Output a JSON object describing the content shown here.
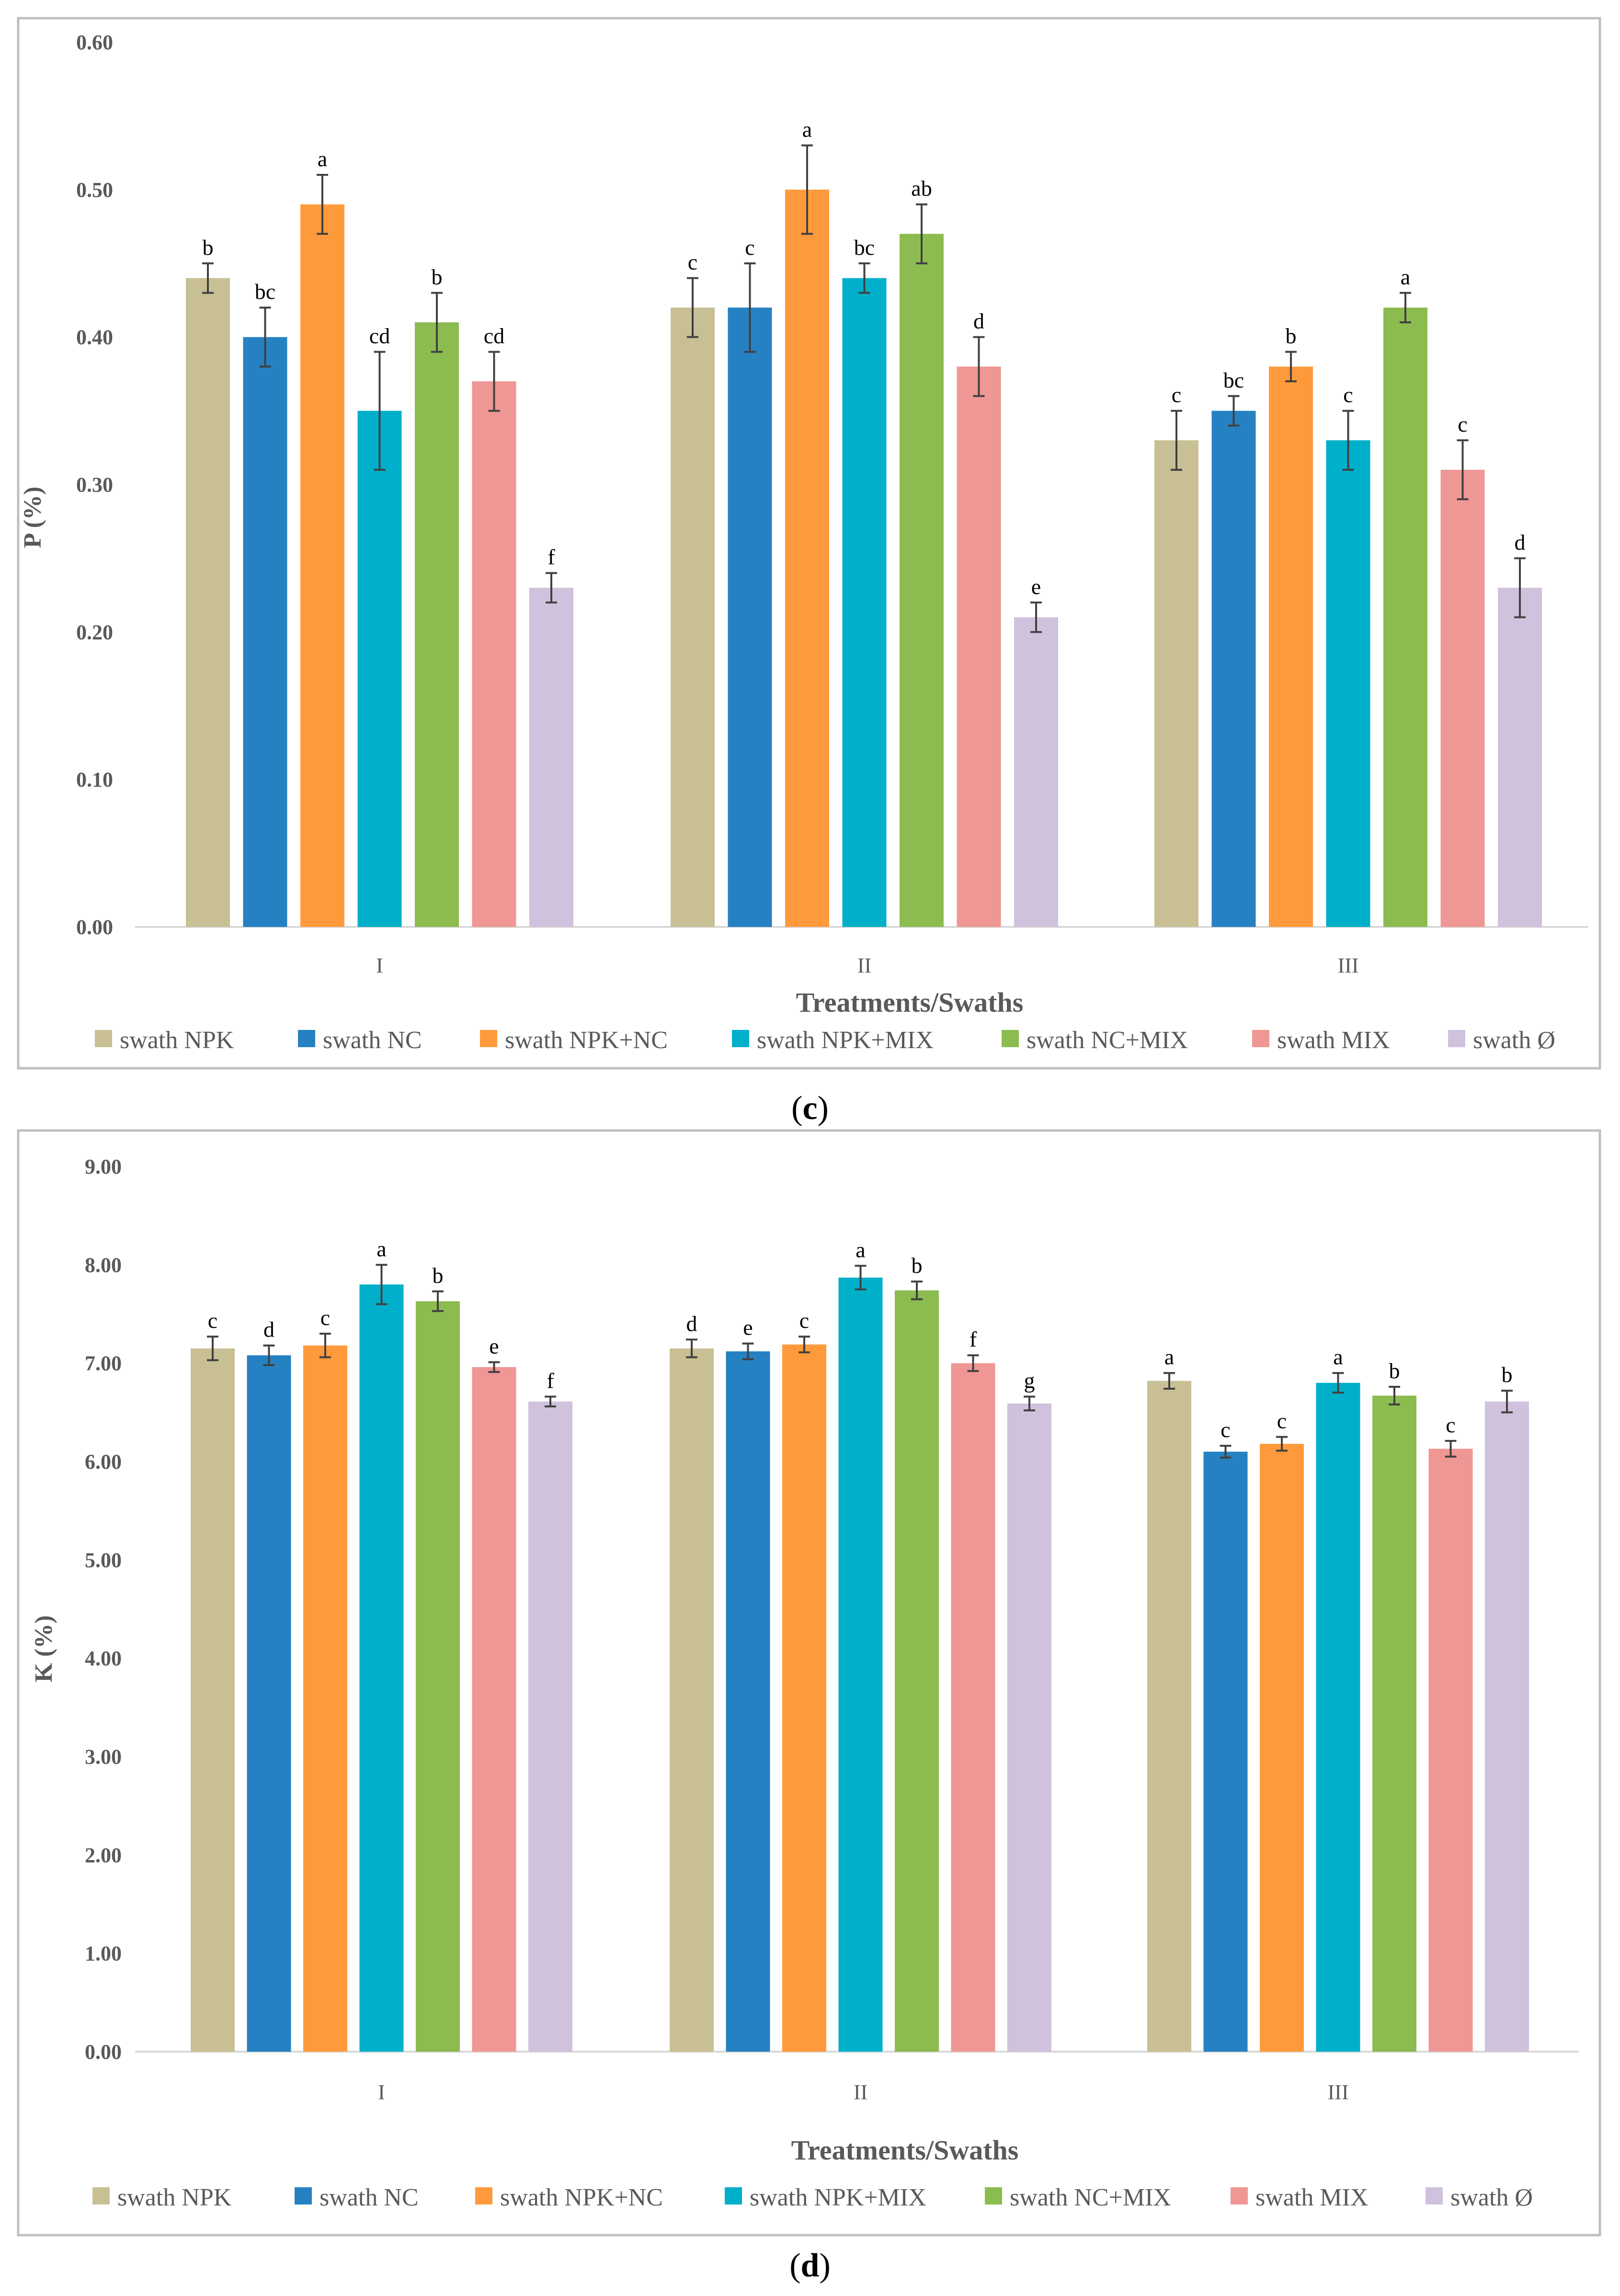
{
  "series_colors": [
    "#c8bf94",
    "#2681c2",
    "#ff9a3c",
    "#00afca",
    "#8cbb50",
    "#ef9794",
    "#d0c1dc"
  ],
  "chart_data": [
    {
      "type": "bar",
      "caption": "(c)",
      "caption_letter": "c",
      "xlabel": "Treatments/Swaths",
      "ylabel": "P (%)",
      "ylim": [
        0,
        0.6
      ],
      "yticks": [
        "0.00",
        "0.10",
        "0.20",
        "0.30",
        "0.40",
        "0.50",
        "0.60"
      ],
      "ytick_values": [
        0,
        0.1,
        0.2,
        0.3,
        0.4,
        0.5,
        0.6
      ],
      "categories": [
        "I",
        "II",
        "III"
      ],
      "legend_position": "bottom",
      "series": [
        {
          "name": "swath NPK",
          "values": [
            0.44,
            0.42,
            0.33
          ],
          "errors": [
            0.01,
            0.02,
            0.02
          ],
          "letters": [
            "b",
            "c",
            "c"
          ]
        },
        {
          "name": "swath NC",
          "values": [
            0.4,
            0.42,
            0.35
          ],
          "errors": [
            0.02,
            0.03,
            0.01
          ],
          "letters": [
            "bc",
            "c",
            "bc"
          ]
        },
        {
          "name": "swath NPK+NC",
          "values": [
            0.49,
            0.5,
            0.38
          ],
          "errors": [
            0.02,
            0.03,
            0.01
          ],
          "letters": [
            "a",
            "a",
            "b"
          ]
        },
        {
          "name": "swath NPK+MIX",
          "values": [
            0.35,
            0.44,
            0.33
          ],
          "errors": [
            0.04,
            0.01,
            0.02
          ],
          "letters": [
            "cd",
            "bc",
            "c"
          ]
        },
        {
          "name": "swath NC+MIX",
          "values": [
            0.41,
            0.47,
            0.42
          ],
          "errors": [
            0.02,
            0.02,
            0.01
          ],
          "letters": [
            "b",
            "ab",
            "a"
          ]
        },
        {
          "name": "swath MIX",
          "values": [
            0.37,
            0.38,
            0.31
          ],
          "errors": [
            0.02,
            0.02,
            0.02
          ],
          "letters": [
            "cd",
            "d",
            "c"
          ]
        },
        {
          "name": "swath Ø",
          "values": [
            0.23,
            0.21,
            0.23
          ],
          "errors": [
            0.01,
            0.01,
            0.02
          ],
          "letters": [
            "f",
            "e",
            "d"
          ]
        }
      ]
    },
    {
      "type": "bar",
      "caption": "(d)",
      "caption_letter": "d",
      "xlabel": "Treatments/Swaths",
      "ylabel": "K (%)",
      "ylim": [
        0,
        9
      ],
      "yticks": [
        "0.00",
        "1.00",
        "2.00",
        "3.00",
        "4.00",
        "5.00",
        "6.00",
        "7.00",
        "8.00",
        "9.00"
      ],
      "ytick_values": [
        0,
        1,
        2,
        3,
        4,
        5,
        6,
        7,
        8,
        9
      ],
      "categories": [
        "I",
        "II",
        "III"
      ],
      "legend_position": "bottom",
      "series": [
        {
          "name": "swath NPK",
          "values": [
            7.15,
            7.15,
            6.82
          ],
          "errors": [
            0.12,
            0.09,
            0.08
          ],
          "letters": [
            "c",
            "d",
            "a"
          ]
        },
        {
          "name": "swath NC",
          "values": [
            7.08,
            7.12,
            6.1
          ],
          "errors": [
            0.1,
            0.08,
            0.06
          ],
          "letters": [
            "d",
            "e",
            "c"
          ]
        },
        {
          "name": "swath NPK+NC",
          "values": [
            7.18,
            7.19,
            6.18
          ],
          "errors": [
            0.12,
            0.08,
            0.07
          ],
          "letters": [
            "c",
            "c",
            "c"
          ]
        },
        {
          "name": "swath NPK+MIX",
          "values": [
            7.8,
            7.87,
            6.8
          ],
          "errors": [
            0.2,
            0.12,
            0.1
          ],
          "letters": [
            "a",
            "a",
            "a"
          ]
        },
        {
          "name": "swath NC+MIX",
          "values": [
            7.63,
            7.74,
            6.67
          ],
          "errors": [
            0.1,
            0.09,
            0.09
          ],
          "letters": [
            "b",
            "b",
            "b"
          ]
        },
        {
          "name": "swath MIX",
          "values": [
            6.96,
            7.0,
            6.13
          ],
          "errors": [
            0.05,
            0.08,
            0.08
          ],
          "letters": [
            "e",
            "f",
            "c"
          ]
        },
        {
          "name": "swath Ø",
          "values": [
            6.61,
            6.59,
            6.61
          ],
          "errors": [
            0.05,
            0.07,
            0.11
          ],
          "letters": [
            "f",
            "g",
            "b"
          ]
        }
      ]
    }
  ]
}
